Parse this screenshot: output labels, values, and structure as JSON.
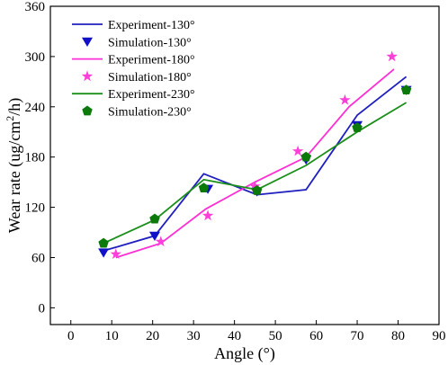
{
  "chart_data": {
    "type": "line",
    "xlabel": "Angle (°)",
    "ylabel_main": "Wear rate (ug/cm",
    "ylabel_sup": "2",
    "ylabel_tail": "/h)",
    "xlim": [
      -5,
      90
    ],
    "ylim": [
      -20,
      360
    ],
    "xticks": [
      0,
      10,
      20,
      30,
      40,
      50,
      60,
      70,
      80,
      90
    ],
    "yticks": [
      0,
      60,
      120,
      180,
      240,
      300,
      360
    ],
    "series": [
      {
        "name": "Experiment-130°",
        "kind": "line",
        "color": "#1f1fbf",
        "x": [
          8,
          20.5,
          32.5,
          45.5,
          57.5,
          70,
          82
        ],
        "y": [
          68,
          86,
          160,
          135,
          141,
          230,
          276
        ]
      },
      {
        "name": "Simulation-130°",
        "kind": "marker",
        "marker": "triangle-down",
        "color": "#1010c8",
        "x": [
          8,
          20.5,
          33.5,
          45.5,
          57.5,
          70,
          82
        ],
        "y": [
          66,
          86,
          142,
          139,
          177,
          218,
          260
        ]
      },
      {
        "name": "Experiment-180°",
        "kind": "line",
        "color": "#ff2fd4",
        "x": [
          11,
          22,
          33,
          45,
          57.5,
          68,
          79
        ],
        "y": [
          60,
          77,
          118,
          150,
          180,
          240,
          285
        ]
      },
      {
        "name": "Simulation-180°",
        "kind": "marker",
        "marker": "star",
        "color": "#ff3fd8",
        "x": [
          11,
          22,
          33.5,
          45,
          55.5,
          67,
          78.5
        ],
        "y": [
          64,
          79,
          110,
          145,
          187,
          248,
          300
        ]
      },
      {
        "name": "Experiment-230°",
        "kind": "line",
        "color": "#1a8f1a",
        "x": [
          8,
          20.5,
          32.5,
          45.5,
          57.5,
          70,
          82
        ],
        "y": [
          77,
          105,
          153,
          141,
          170,
          210,
          245
        ]
      },
      {
        "name": "Simulation-230°",
        "kind": "marker",
        "marker": "pentagon",
        "color": "#0b7a0b",
        "x": [
          8,
          20.5,
          32.5,
          45.5,
          57.5,
          70,
          82
        ],
        "y": [
          77,
          106,
          143,
          140,
          180,
          215,
          260
        ]
      }
    ]
  }
}
